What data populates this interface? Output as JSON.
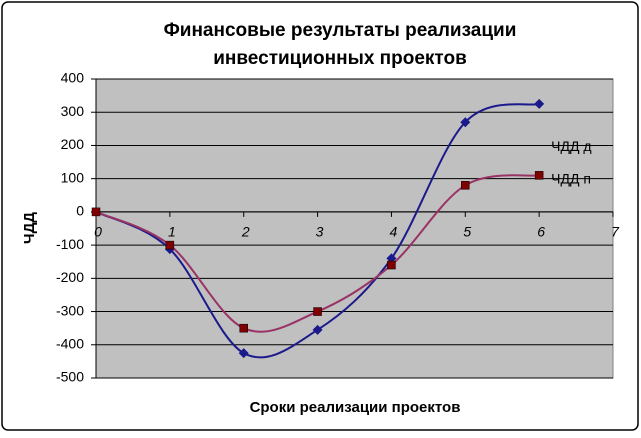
{
  "chart_data": {
    "type": "line",
    "title": [
      "Финансовые результаты реализации",
      "инвестиционных проектов"
    ],
    "x_label": "Сроки реализации проектов",
    "y_label": "ЧДД",
    "x": [
      0,
      1,
      2,
      3,
      4,
      5,
      6
    ],
    "series": [
      {
        "name": "ЧДД п",
        "color": "#1a1a8c",
        "marker": "diamond",
        "values": [
          0,
          -112,
          -425,
          -355,
          -140,
          270,
          325
        ]
      },
      {
        "name": "ЧДД д",
        "color": "#993366",
        "marker_color": "#800000",
        "marker": "square",
        "values": [
          0,
          -100,
          -350,
          -300,
          -160,
          80,
          110
        ]
      }
    ],
    "xlim": [
      0,
      7
    ],
    "xticks": [
      0,
      1,
      2,
      3,
      4,
      5,
      6,
      7
    ],
    "ylim": [
      -500,
      400
    ],
    "yticks": [
      -500,
      -400,
      -300,
      -200,
      -100,
      0,
      100,
      200,
      300,
      400
    ],
    "grid": true,
    "smooth": true
  }
}
